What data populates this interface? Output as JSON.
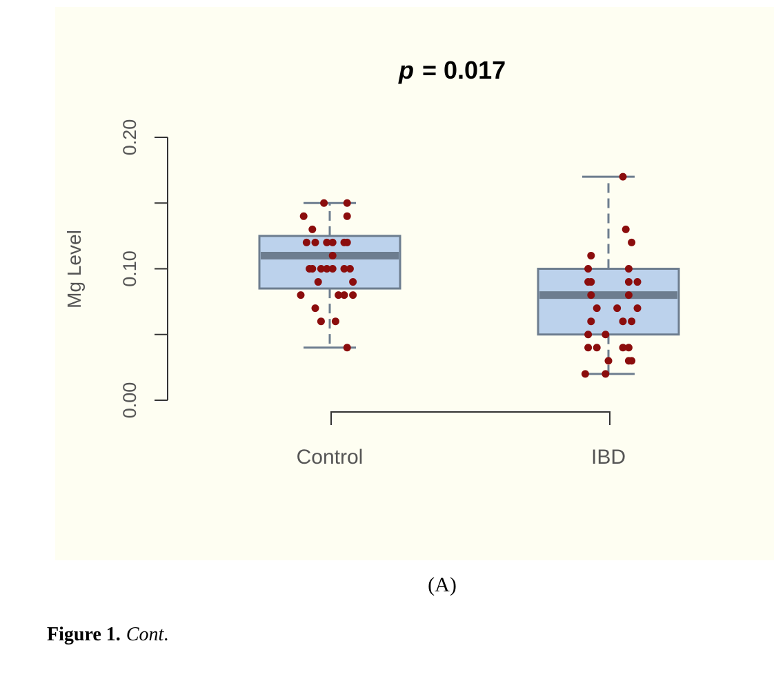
{
  "chart_data": {
    "type": "box",
    "title_prefix": "p",
    "title_value": "=  0.017",
    "ylabel": "Mg Level",
    "ylim": [
      0,
      0.2
    ],
    "y_ticks": [
      0,
      0.05,
      0.1,
      0.15,
      0.2
    ],
    "y_tick_labels": [
      "0.00",
      "",
      "0.10",
      "",
      "0.20"
    ],
    "categories": [
      "Control",
      "IBD"
    ],
    "boxes": [
      {
        "name": "Control",
        "min": 0.04,
        "q1": 0.085,
        "median": 0.11,
        "q3": 0.125,
        "max": 0.15
      },
      {
        "name": "IBD",
        "min": 0.02,
        "q1": 0.05,
        "median": 0.08,
        "q3": 0.1,
        "max": 0.17
      }
    ],
    "points": [
      {
        "category": "Control",
        "jitter": [
          -0.02,
          0.06,
          -0.09,
          0.06,
          -0.06,
          0.01,
          -0.05,
          0.06,
          -0.01,
          0.05,
          -0.08,
          0.01,
          0.07,
          -0.03,
          -0.07,
          0.05,
          0.01,
          -0.06,
          0.08,
          -0.04,
          0.05,
          -0.1,
          0.03,
          0.08,
          -0.05,
          0.02,
          -0.03,
          0.06,
          -0.01
        ],
        "values": [
          0.15,
          0.15,
          0.14,
          0.14,
          0.13,
          0.12,
          0.12,
          0.12,
          0.12,
          0.12,
          0.12,
          0.11,
          0.1,
          0.1,
          0.1,
          0.1,
          0.1,
          0.1,
          0.09,
          0.09,
          0.08,
          0.08,
          0.08,
          0.08,
          0.07,
          0.06,
          0.06,
          0.04,
          0.1
        ]
      },
      {
        "category": "IBD",
        "jitter": [
          0.05,
          0.06,
          0.08,
          -0.06,
          -0.07,
          0.07,
          -0.06,
          -0.07,
          0.07,
          0.1,
          -0.06,
          0.07,
          -0.04,
          0.1,
          -0.06,
          0.05,
          0.08,
          -0.07,
          -0.01,
          0.07,
          -0.07,
          0.05,
          -0.04,
          0.07,
          0.0,
          0.08,
          -0.08,
          -0.01,
          0.03
        ],
        "values": [
          0.17,
          0.13,
          0.12,
          0.11,
          0.1,
          0.1,
          0.09,
          0.09,
          0.09,
          0.09,
          0.08,
          0.08,
          0.07,
          0.07,
          0.06,
          0.06,
          0.06,
          0.05,
          0.05,
          0.04,
          0.04,
          0.04,
          0.04,
          0.03,
          0.03,
          0.03,
          0.02,
          0.02,
          0.07
        ]
      }
    ],
    "colors": {
      "box_fill": "#bcd2ec",
      "box_stroke": "#6d7d8f",
      "points": "#8b0d0d",
      "background": "#fefef2"
    }
  },
  "figure": {
    "panel_label": "(A)",
    "caption_bold": "Figure 1.",
    "caption_italic": "Cont",
    "caption_end": "."
  }
}
